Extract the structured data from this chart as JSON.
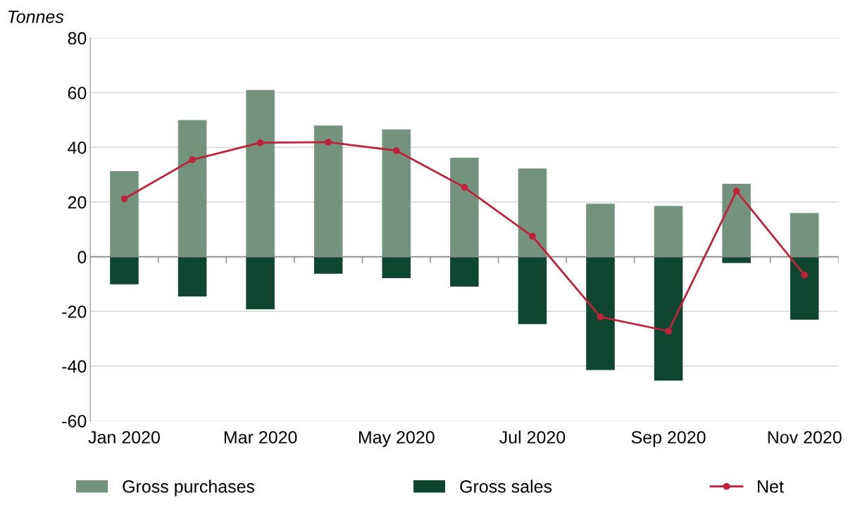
{
  "chart_data": {
    "type": "bar",
    "ylabel": "Tonnes",
    "categories": [
      "Jan 2020",
      null,
      "Mar 2020",
      null,
      "May 2020",
      null,
      "Jul 2020",
      null,
      "Sep 2020",
      null,
      "Nov 2020"
    ],
    "series": [
      {
        "name": "Gross purchases",
        "color": "#73937f",
        "values": [
          31.3,
          50,
          61,
          48,
          46.6,
          36.2,
          32.3,
          19.4,
          18.6,
          26.7,
          16
        ]
      },
      {
        "name": "Gross sales",
        "color": "#0f4632",
        "values": [
          -10.1,
          -14.5,
          -19.2,
          -6.2,
          -7.8,
          -10.9,
          -24.6,
          -41.4,
          -45.3,
          -2.3,
          -23
        ]
      },
      {
        "name": "Net",
        "type": "line",
        "color": "#c0223a",
        "values": [
          21.2,
          35.5,
          41.7,
          41.9,
          38.8,
          25.4,
          7.5,
          -22,
          -27.2,
          24,
          -6.7
        ]
      }
    ],
    "ylim": [
      -60,
      80
    ],
    "yticks": [
      -60,
      -40,
      -20,
      0,
      20,
      40,
      60,
      80
    ],
    "stacked": true,
    "grid": "y",
    "legend": "bottom",
    "marker": "circle",
    "line_style": "solid"
  }
}
